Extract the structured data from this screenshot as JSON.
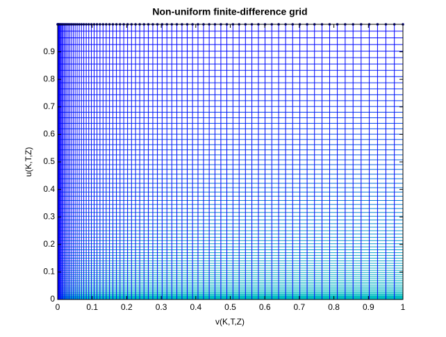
{
  "chart_data": {
    "type": "mesh",
    "title": "Non-uniform finite-difference grid",
    "xlabel": "v(K,T,Z)",
    "ylabel": "u(K,T,Z)",
    "x": [
      0,
      0.0002,
      0.0006,
      0.0014,
      0.0025,
      0.0039,
      0.0056,
      0.0077,
      0.01,
      0.0127,
      0.0156,
      0.0189,
      0.0225,
      0.0264,
      0.0306,
      0.0352,
      0.04,
      0.0452,
      0.0506,
      0.0564,
      0.0625,
      0.0689,
      0.0756,
      0.0827,
      0.09,
      0.0977,
      0.1056,
      0.1139,
      0.1225,
      0.1314,
      0.1406,
      0.1502,
      0.16,
      0.1702,
      0.1806,
      0.1914,
      0.2025,
      0.2139,
      0.2256,
      0.2377,
      0.25,
      0.2627,
      0.2756,
      0.2889,
      0.3025,
      0.3164,
      0.3306,
      0.3452,
      0.36,
      0.3752,
      0.3906,
      0.4064,
      0.4225,
      0.4389,
      0.4556,
      0.4727,
      0.49,
      0.5077,
      0.5256,
      0.5439,
      0.5625,
      0.5814,
      0.6006,
      0.6202,
      0.64,
      0.6602,
      0.6806,
      0.7014,
      0.7225,
      0.7439,
      0.7656,
      0.7877,
      0.81,
      0.8327,
      0.8556,
      0.8789,
      0.9025,
      0.9264,
      0.9506,
      0.9752,
      1
    ],
    "y": [
      0,
      0.0002,
      0.0006,
      0.0014,
      0.0025,
      0.0039,
      0.0056,
      0.0077,
      0.01,
      0.0127,
      0.0156,
      0.0189,
      0.0225,
      0.0264,
      0.0306,
      0.0352,
      0.04,
      0.0452,
      0.0506,
      0.0564,
      0.0625,
      0.0689,
      0.0756,
      0.0827,
      0.09,
      0.0977,
      0.1056,
      0.1139,
      0.1225,
      0.1314,
      0.1406,
      0.1502,
      0.16,
      0.1702,
      0.1806,
      0.1914,
      0.2025,
      0.2139,
      0.2256,
      0.2377,
      0.25,
      0.2627,
      0.2756,
      0.2889,
      0.3025,
      0.3164,
      0.3306,
      0.3452,
      0.36,
      0.3752,
      0.3906,
      0.4064,
      0.4225,
      0.4389,
      0.4556,
      0.4727,
      0.49,
      0.5077,
      0.5256,
      0.5439,
      0.5625,
      0.5814,
      0.6006,
      0.6202,
      0.64,
      0.6602,
      0.6806,
      0.7014,
      0.7225,
      0.7439,
      0.7656,
      0.7877,
      0.81,
      0.8327,
      0.8556,
      0.8789,
      0.9025,
      0.9264,
      0.9506,
      0.9752,
      1
    ],
    "xlim": [
      0,
      1
    ],
    "ylim": [
      0,
      1
    ],
    "xticks": [
      0,
      0.1,
      0.2,
      0.3,
      0.4,
      0.5,
      0.6,
      0.7,
      0.8,
      0.9,
      1
    ],
    "yticks": [
      0,
      0.1,
      0.2,
      0.3,
      0.4,
      0.5,
      0.6,
      0.7,
      0.8,
      0.9
    ],
    "color_low": "#00c0c0",
    "color_high": "#0000ff",
    "marker_color": "#000080"
  }
}
